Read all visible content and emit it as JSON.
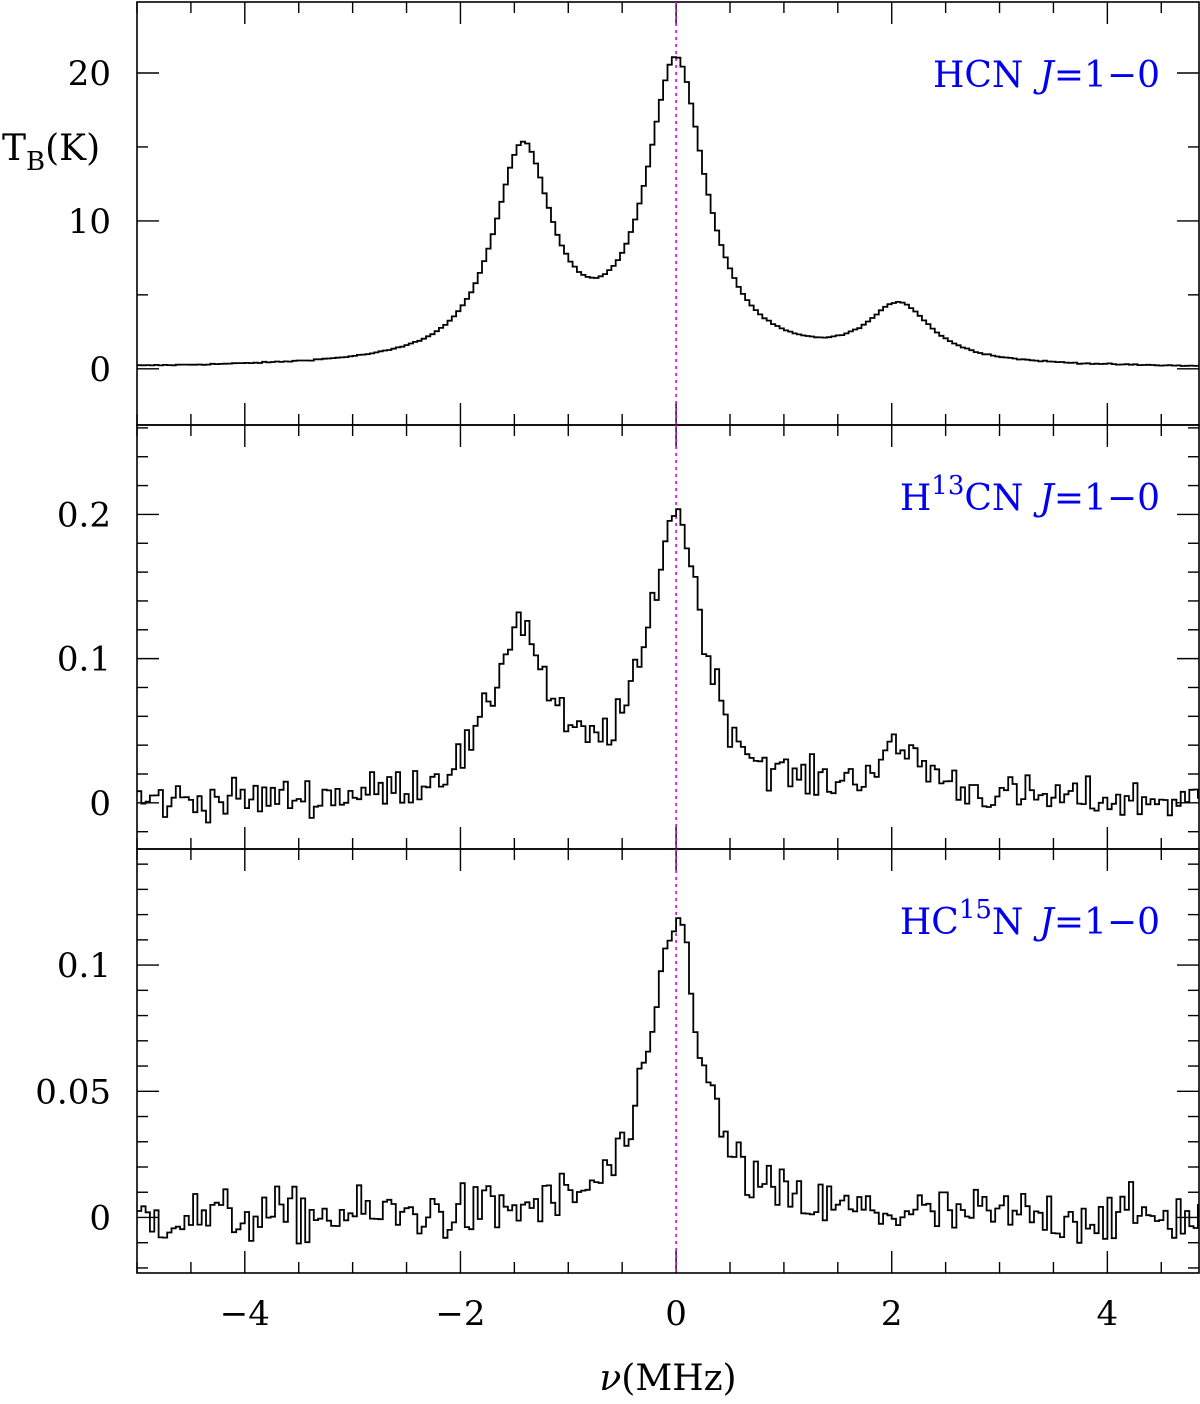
{
  "chart_data": {
    "type": "line",
    "render": "step",
    "shared_x": {
      "label_symbol": "ν",
      "label_unit": "(MHz)",
      "range": [
        -5,
        4.85
      ],
      "ticks": [
        -4,
        -2,
        0,
        2,
        4
      ],
      "tick_labels": [
        "−4",
        "−2",
        "0",
        "2",
        "4"
      ]
    },
    "reference_line_x": 0,
    "y_axis_label_main": "T",
    "y_axis_label_sub": "B",
    "y_axis_label_unit": "(K)",
    "panels": [
      {
        "label_main": "HCN",
        "label_sup": "",
        "label_rest": "",
        "label_j": "J",
        "label_trans": "=1−0",
        "ylim": [
          -3.8,
          24.8
        ],
        "yticks": [
          0,
          10,
          20
        ],
        "ytick_labels": [
          "0",
          "10",
          "20"
        ],
        "minor_ytick_step": 5,
        "noise": 0.02,
        "components": [
          {
            "center": -1.42,
            "amplitude": 14.3,
            "width": 0.33
          },
          {
            "center": 0.0,
            "amplitude": 20.3,
            "width": 0.33
          },
          {
            "center": 2.07,
            "amplitude": 3.9,
            "width": 0.36
          }
        ]
      },
      {
        "label_main": "H",
        "label_sup": "13",
        "label_rest": "CN",
        "label_j": "J",
        "label_trans": "=1−0",
        "ylim": [
          -0.032,
          0.262
        ],
        "yticks": [
          0,
          0.1,
          0.2
        ],
        "ytick_labels": [
          "0",
          "0.1",
          "0.2"
        ],
        "minor_ytick_step": 0.02,
        "noise": 0.007,
        "components": [
          {
            "center": -1.45,
            "amplitude": 0.118,
            "width": 0.3
          },
          {
            "center": 0.0,
            "amplitude": 0.197,
            "width": 0.3
          },
          {
            "center": 2.1,
            "amplitude": 0.032,
            "width": 0.32
          }
        ]
      },
      {
        "label_main": "HC",
        "label_sup": "15",
        "label_rest": "N",
        "label_j": "J",
        "label_trans": "=1−0",
        "ylim": [
          -0.022,
          0.146
        ],
        "yticks": [
          0,
          0.05,
          0.1
        ],
        "ytick_labels": [
          "0",
          "0.05",
          "0.1"
        ],
        "minor_ytick_step": 0.01,
        "noise": 0.0055,
        "components": [
          {
            "center": 0.0,
            "amplitude": 0.118,
            "width": 0.27
          }
        ]
      }
    ]
  }
}
